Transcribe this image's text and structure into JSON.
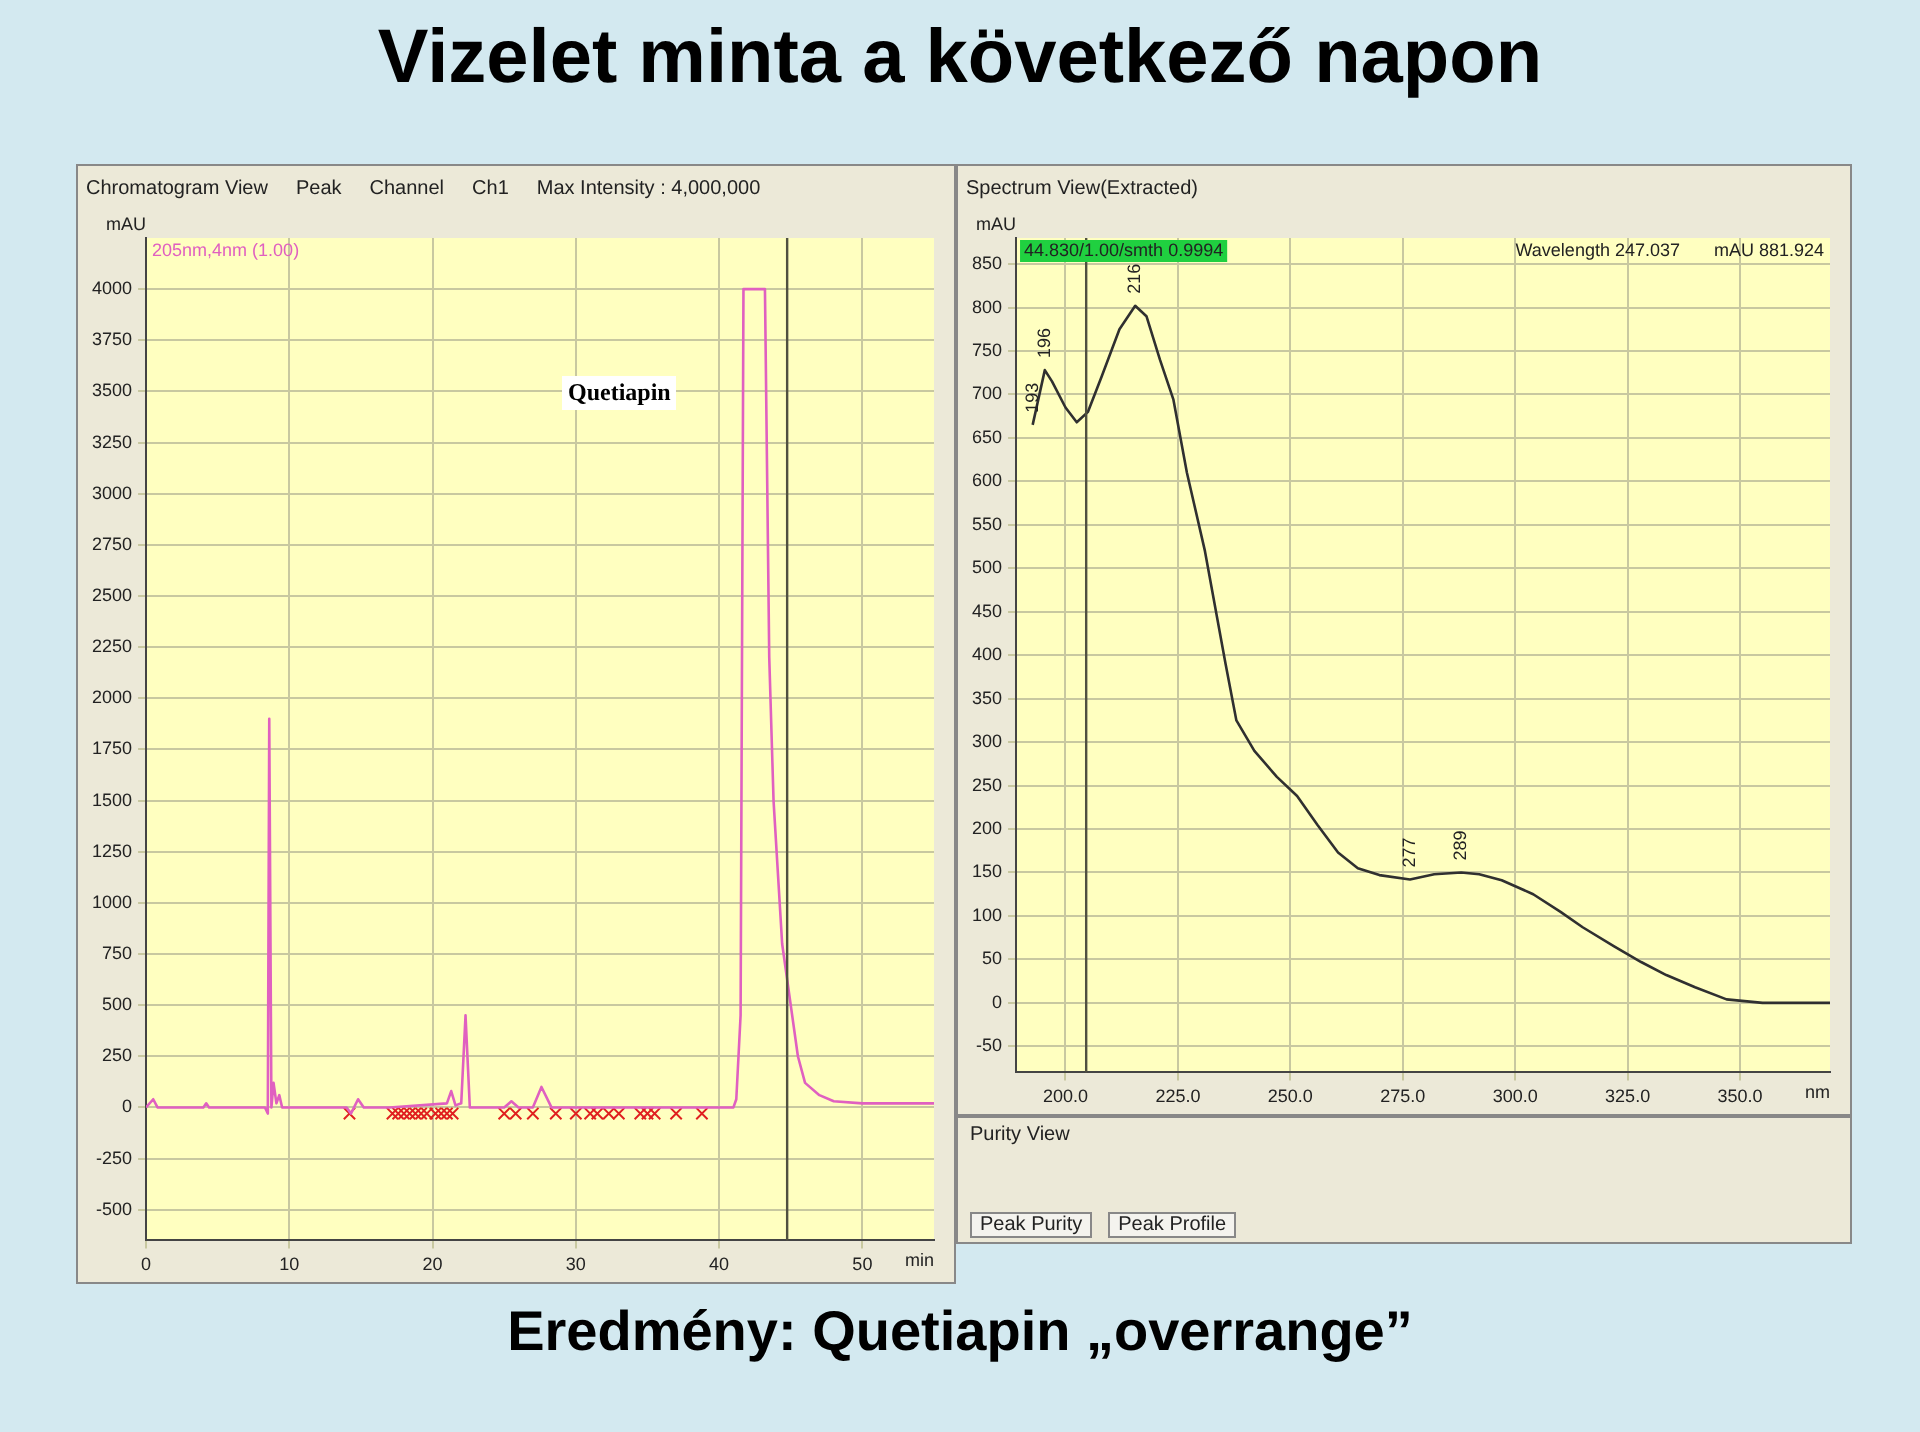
{
  "chart_data": [
    {
      "type": "line",
      "title": "Vizelet minta a következő napon",
      "subtitle": "Chromatogram View",
      "xlabel": "min",
      "ylabel": "mAU",
      "xlim": [
        0,
        55
      ],
      "xticks": [
        0,
        10,
        20,
        30,
        40,
        50
      ],
      "ylim": [
        -650,
        4250
      ],
      "yticks": [
        -500,
        -250,
        0,
        250,
        500,
        750,
        1000,
        1250,
        1500,
        1750,
        2000,
        2250,
        2500,
        2750,
        3000,
        3250,
        3500,
        3750,
        4000
      ],
      "grid": true,
      "legend": "top left",
      "marker": "none",
      "line_style": "solid",
      "ref_lines": [
        {
          "axis": "x",
          "value": 44.75,
          "color": "#505040"
        }
      ],
      "series": [
        {
          "name": "205nm,4nm (1.00)",
          "color": "#e060c0",
          "x": [
            0,
            0.5,
            0.8,
            4,
            4.2,
            4.4,
            8.3,
            8.5,
            8.6,
            8.75,
            8.9,
            9.1,
            9.3,
            9.5,
            14,
            14.3,
            14.8,
            15.2,
            17,
            21,
            21.3,
            21.6,
            22,
            22.3,
            22.6,
            25,
            25.5,
            26,
            27,
            27.6,
            28.3,
            41,
            41.2,
            41.5,
            41.7,
            43.2,
            43.5,
            43.8,
            44.4,
            45,
            45.5,
            46,
            47,
            48,
            50,
            55
          ],
          "values": [
            0,
            40,
            0,
            0,
            20,
            0,
            0,
            -30,
            1900,
            0,
            120,
            20,
            60,
            0,
            0,
            -30,
            40,
            0,
            0,
            20,
            80,
            10,
            20,
            450,
            0,
            0,
            30,
            0,
            0,
            100,
            0,
            0,
            40,
            450,
            4000,
            4000,
            2200,
            1500,
            800,
            500,
            250,
            120,
            60,
            30,
            20,
            20
          ]
        },
        {
          "type": "scatter",
          "marker": "cross",
          "color": "#e02020",
          "x": [
            14.2,
            17.2,
            17.6,
            18,
            18.4,
            18.8,
            19.2,
            19.6,
            20.2,
            20.6,
            21,
            21.4,
            25,
            25.8,
            27,
            28.6,
            30,
            31,
            31.5,
            32.3,
            33,
            34.5,
            35,
            35.5,
            37,
            38.8
          ],
          "values": [
            -30,
            -30,
            -30,
            -30,
            -30,
            -30,
            -30,
            -30,
            -30,
            -30,
            -30,
            -30,
            -30,
            -30,
            -30,
            -30,
            -30,
            -30,
            -30,
            -30,
            -30,
            -30,
            -30,
            -30,
            -30,
            -30
          ]
        }
      ],
      "annotations": [
        "Peak",
        "Channel",
        "Ch1",
        "Max Intensity : 4,000,000",
        "Quetiapin",
        "Eredmény: Quetiapin „overrange”"
      ]
    },
    {
      "type": "line",
      "title": "Spectrum View(Extracted)",
      "xlabel": "nm",
      "ylabel": "mAU",
      "xlim": [
        189,
        370
      ],
      "xticks": [
        {
          "value": 200,
          "label": "200.0"
        },
        {
          "value": 225,
          "label": "225.0"
        },
        {
          "value": 250,
          "label": "250.0"
        },
        {
          "value": 275,
          "label": "275.0"
        },
        {
          "value": 300,
          "label": "300.0"
        },
        {
          "value": 325,
          "label": "325.0"
        },
        {
          "value": 350,
          "label": "350.0"
        }
      ],
      "ylim": [
        -80,
        880
      ],
      "yticks": [
        -50,
        0,
        50,
        100,
        150,
        200,
        250,
        300,
        350,
        400,
        450,
        500,
        550,
        600,
        650,
        700,
        750,
        800,
        850
      ],
      "grid": true,
      "marker": "none",
      "line_style": "solid",
      "ref_lines": [
        {
          "axis": "x",
          "value": 204.6,
          "color": "#505040"
        }
      ],
      "series": [
        {
          "color": "#303030",
          "x": [
            192.7,
            195.4,
            197,
            200,
            202.5,
            205,
            208,
            212,
            215.5,
            218,
            221,
            224,
            227,
            231,
            235.6,
            238,
            242,
            247,
            251.5,
            256,
            260.6,
            265,
            269.8,
            276.6,
            282,
            288,
            292,
            297,
            304,
            310,
            315,
            322,
            328,
            333.6,
            340,
            347,
            355,
            370
          ],
          "values": [
            665,
            728,
            715,
            685,
            668,
            680,
            720,
            775,
            802,
            790,
            740,
            694,
            610,
            520,
            390,
            325,
            290,
            260,
            238,
            205,
            173,
            155,
            147,
            142,
            148,
            150,
            148,
            141,
            125,
            105,
            87,
            65,
            47,
            32,
            18,
            4,
            0,
            0
          ]
        }
      ],
      "annotations": [
        "44.830/1.00/smth 0.9994",
        "Wavelength 247.037",
        "mAU 881.924",
        "Purity View",
        "Peak Purity",
        "Peak Profile",
        {
          "text": "193",
          "x": 192.7,
          "y": 665
        },
        {
          "text": "196",
          "x": 195.4,
          "y": 728
        },
        {
          "text": "216",
          "x": 215.5,
          "y": 802
        },
        {
          "text": "277",
          "x": 276.6,
          "y": 142
        },
        {
          "text": "289",
          "x": 288,
          "y": 150
        }
      ]
    }
  ]
}
